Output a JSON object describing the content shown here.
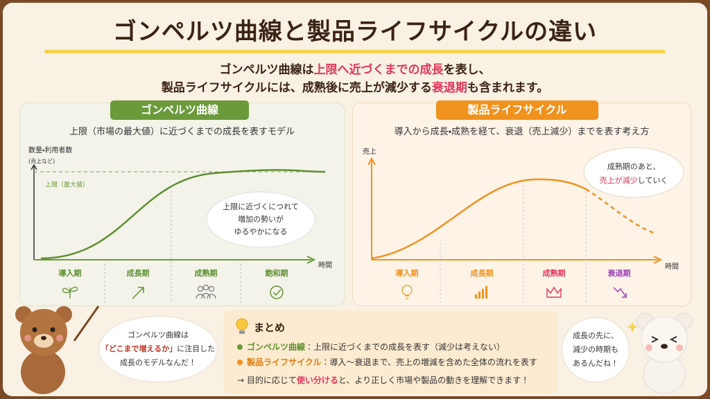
{
  "title": "ゴンペルツ曲線と製品ライフサイクルの違い",
  "subtitle": {
    "line1": [
      "ゴンペルツ曲線は",
      "上限へ近づくまでの成長",
      "を表し、"
    ],
    "line2": [
      "製品ライフサイクルには、成熟後に売上が減少する",
      "衰退期",
      "も含まれます。"
    ]
  },
  "left_panel": {
    "label": "ゴンペルツ曲線",
    "description": "上限（市場の最大値）に近づくまでの成長を表すモデル",
    "y_axis_label": [
      "数量・利用者数",
      "(売上など)"
    ],
    "limit_label": "上限（最大値）",
    "callout": [
      "上限に近づくにつれて",
      "増加の勢いが",
      "ゆるやかになる"
    ],
    "x_axis_label": "時間",
    "stages": [
      "導入期",
      "成長期",
      "成熟期",
      "飽和期"
    ]
  },
  "right_panel": {
    "label": "製品ライフサイクル",
    "description": "導入から成長・成熟を経て、衰退（売上減少）までを表す考え方",
    "y_axis_label": "売上",
    "callout": [
      "成熟期のあと、",
      "売上が減少",
      "していく"
    ],
    "x_axis_label": "時間",
    "stages": [
      "導入期",
      "成長期",
      "成熟期",
      "衰退期"
    ]
  },
  "bear_left_speech": [
    "ゴンペルツ曲線は",
    "「どこまで増えるか」",
    "に注目した",
    "成長のモデルなんだ！"
  ],
  "summary": {
    "title": "まとめ",
    "items": [
      [
        "ゴンペルツ曲線",
        "：上限に近づくまでの成長を表す（減少は考えない）"
      ],
      [
        "製品ライフサイクル",
        "：導入〜衰退まで、売上の増減を含めた全体の流れを表す"
      ]
    ],
    "note": [
      "→ 目的に応じて",
      "使い分ける",
      "と、より正しく市場や製品の動きを理解できます！"
    ]
  },
  "bear_right_speech": [
    "成長の先に、",
    "減少の時期も",
    "あるんだね！"
  ]
}
